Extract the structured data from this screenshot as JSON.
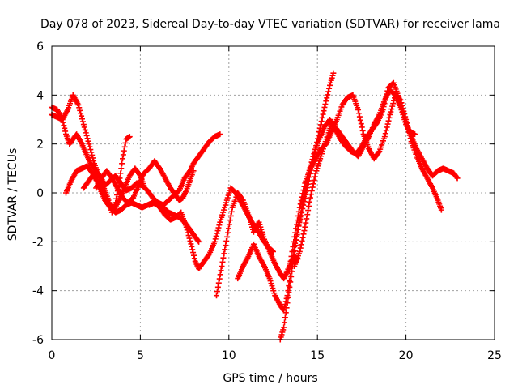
{
  "chart_data": {
    "type": "scatter",
    "title": "Day 078 of 2023, Sidereal Day-to-day VTEC variation (SDTVAR) for receiver lama",
    "xlabel": "GPS time / hours",
    "ylabel": "SDTVAR / TECUs",
    "xlim": [
      0,
      25
    ],
    "ylim": [
      -6,
      6
    ],
    "xticks": [
      "0",
      "5",
      "10",
      "15",
      "20",
      "25"
    ],
    "yticks": [
      "-6",
      "-4",
      "-2",
      "0",
      "2",
      "4",
      "6"
    ],
    "grid": true,
    "marker": "+",
    "color": "#ff0000",
    "series": [
      {
        "x": [
          0.0,
          0.3,
          0.6,
          0.8,
          1.0,
          1.2,
          1.4,
          1.7,
          2.0,
          2.2,
          2.5,
          2.8,
          3.0,
          3.3,
          3.6,
          3.9,
          4.2,
          4.5,
          4.8,
          5.1,
          5.4,
          5.7,
          6.0,
          6.3,
          6.6,
          6.9,
          7.2,
          7.5,
          7.8,
          8.0,
          8.2,
          8.4,
          8.6,
          8.9,
          9.2,
          9.5
        ],
        "y": [
          3.5,
          3.4,
          3.0,
          2.4,
          2.0,
          2.2,
          2.4,
          2.0,
          1.5,
          1.2,
          0.9,
          0.6,
          0.3,
          0.5,
          0.7,
          0.4,
          0.1,
          0.2,
          0.4,
          0.3,
          0.1,
          -0.2,
          -0.4,
          -0.5,
          -0.3,
          -0.1,
          0.1,
          0.6,
          0.9,
          1.2,
          1.4,
          1.6,
          1.8,
          2.1,
          2.3,
          2.4
        ]
      },
      {
        "x": [
          0.0,
          0.3,
          0.6,
          0.9,
          1.2,
          1.5,
          1.8,
          2.1,
          2.4,
          2.7,
          3.0,
          3.2,
          3.4,
          3.6,
          3.8,
          4.0,
          4.2,
          4.4
        ],
        "y": [
          3.2,
          3.1,
          3.0,
          3.4,
          4.0,
          3.6,
          2.8,
          2.0,
          1.2,
          0.6,
          0.1,
          -0.3,
          -0.8,
          -0.4,
          0.4,
          1.4,
          2.2,
          2.3
        ]
      },
      {
        "x": [
          0.8,
          1.1,
          1.4,
          1.7,
          2.0,
          2.3,
          2.6,
          2.9,
          3.2,
          3.5,
          3.8,
          4.1,
          4.4,
          4.7,
          5.0,
          5.2
        ],
        "y": [
          0.0,
          0.5,
          0.9,
          1.0,
          1.1,
          0.8,
          0.4,
          0.0,
          -0.4,
          -0.7,
          -0.3,
          0.2,
          0.7,
          1.0,
          0.7,
          0.3
        ]
      },
      {
        "x": [
          1.8,
          2.1,
          2.4,
          2.7,
          3.0,
          3.3,
          3.6,
          3.9,
          4.2,
          4.5,
          4.8,
          5.1,
          5.4,
          5.7,
          6.0,
          6.3,
          6.6,
          6.9,
          7.2,
          7.5,
          7.8,
          8.1,
          8.3
        ],
        "y": [
          0.2,
          0.5,
          0.8,
          0.2,
          -0.3,
          -0.6,
          -0.8,
          -0.7,
          -0.5,
          -0.4,
          -0.5,
          -0.6,
          -0.5,
          -0.4,
          -0.5,
          -0.6,
          -0.8,
          -0.9,
          -1.0,
          -1.2,
          -1.5,
          -1.8,
          -2.0
        ]
      },
      {
        "x": [
          2.5,
          2.8,
          3.1,
          3.4,
          3.7,
          4.0,
          4.3,
          4.6,
          4.9,
          5.2,
          5.5,
          5.8,
          6.1,
          6.4,
          6.7,
          7.0,
          7.2,
          7.4,
          7.6,
          7.8,
          8.0
        ],
        "y": [
          0.2,
          0.6,
          0.9,
          0.6,
          0.2,
          -0.2,
          -0.4,
          -0.2,
          0.3,
          0.8,
          1.0,
          1.3,
          1.0,
          0.6,
          0.2,
          -0.1,
          -0.3,
          -0.2,
          0.1,
          0.5,
          0.9
        ]
      },
      {
        "x": [
          5.5,
          5.8,
          6.1,
          6.4,
          6.7,
          7.0,
          7.3,
          7.6,
          7.9,
          8.1,
          8.3,
          8.6,
          8.9,
          9.2,
          9.5,
          9.8,
          10.1,
          10.4,
          10.7,
          11.0,
          11.3,
          11.6,
          11.9,
          12.2,
          12.5
        ],
        "y": [
          -0.5,
          -0.4,
          -0.6,
          -0.9,
          -1.1,
          -1.0,
          -0.8,
          -1.4,
          -2.2,
          -2.8,
          -3.1,
          -2.8,
          -2.5,
          -2.0,
          -1.2,
          -0.5,
          0.2,
          0.0,
          -0.4,
          -0.8,
          -1.2,
          -1.5,
          -1.9,
          -2.2,
          -2.4
        ]
      },
      {
        "x": [
          9.3,
          9.6,
          9.9,
          10.2,
          10.5,
          10.8,
          11.1,
          11.4,
          11.7,
          12.0,
          12.3,
          12.6,
          12.9,
          13.1,
          13.3,
          13.5,
          13.7,
          13.9
        ],
        "y": [
          -4.2,
          -3.0,
          -1.8,
          -0.6,
          0.0,
          -0.3,
          -0.9,
          -1.6,
          -1.2,
          -1.9,
          -2.4,
          -2.9,
          -3.3,
          -3.5,
          -3.2,
          -2.8,
          -2.6,
          -2.7
        ]
      },
      {
        "x": [
          10.5,
          10.8,
          11.1,
          11.4,
          11.7,
          12.0,
          12.3,
          12.6,
          12.9,
          13.1,
          13.3,
          13.5,
          13.7,
          13.9,
          14.2,
          14.5,
          14.8,
          15.1,
          15.4,
          15.7,
          15.9
        ],
        "y": [
          -3.5,
          -3.0,
          -2.6,
          -2.1,
          -2.6,
          -3.0,
          -3.5,
          -4.2,
          -4.6,
          -4.8,
          -4.2,
          -3.2,
          -2.2,
          -1.5,
          -0.5,
          0.5,
          1.5,
          2.5,
          3.5,
          4.4,
          4.9
        ]
      },
      {
        "x": [
          12.9,
          13.1,
          13.3,
          13.6,
          13.9,
          14.2,
          14.5,
          14.8,
          15.1,
          15.4,
          15.7,
          16.0,
          16.3,
          16.6,
          16.9,
          17.2,
          17.5,
          17.8,
          18.1,
          18.4,
          18.7,
          19.0,
          19.3,
          19.6,
          19.9,
          20.2,
          20.5
        ],
        "y": [
          -6.0,
          -5.5,
          -4.5,
          -3.0,
          -1.5,
          -0.3,
          0.8,
          1.6,
          2.2,
          2.7,
          3.0,
          2.6,
          2.2,
          1.9,
          1.7,
          1.6,
          1.9,
          2.3,
          2.6,
          2.9,
          3.4,
          4.3,
          4.5,
          3.9,
          3.1,
          2.5,
          2.4
        ]
      },
      {
        "x": [
          13.4,
          13.7,
          14.0,
          14.3,
          14.6,
          14.9,
          15.2,
          15.5,
          15.8,
          16.1,
          16.4,
          16.7,
          17.0,
          17.3,
          17.6,
          17.9,
          18.2,
          18.5,
          18.8,
          19.1,
          19.4,
          19.7,
          20.0,
          20.3,
          20.6,
          20.9,
          21.2,
          21.5,
          21.8,
          22.0
        ],
        "y": [
          -3.2,
          -1.8,
          -0.6,
          0.4,
          1.0,
          1.4,
          1.8,
          2.0,
          2.5,
          3.0,
          3.6,
          3.9,
          4.0,
          3.4,
          2.4,
          1.8,
          1.4,
          1.7,
          2.3,
          3.2,
          4.0,
          3.8,
          3.0,
          2.1,
          1.5,
          1.0,
          0.6,
          0.2,
          -0.3,
          -0.7
        ]
      },
      {
        "x": [
          13.7,
          14.0,
          14.3,
          14.6,
          14.9,
          15.2,
          15.5,
          15.8,
          16.1,
          16.4,
          16.7,
          17.0,
          17.3,
          17.6,
          17.9,
          18.2,
          18.5,
          18.8,
          19.1,
          19.4,
          19.7,
          20.0,
          20.3,
          20.6,
          20.9,
          21.2,
          21.5,
          21.8,
          22.1,
          22.4,
          22.7,
          22.9
        ],
        "y": [
          -3.0,
          -2.4,
          -1.4,
          -0.2,
          0.8,
          1.5,
          2.2,
          2.8,
          2.6,
          2.3,
          2.0,
          1.7,
          1.5,
          1.9,
          2.3,
          2.8,
          3.2,
          3.8,
          4.2,
          4.0,
          3.5,
          2.8,
          2.3,
          1.8,
          1.4,
          1.0,
          0.7,
          0.9,
          1.0,
          0.9,
          0.8,
          0.6
        ]
      }
    ]
  }
}
